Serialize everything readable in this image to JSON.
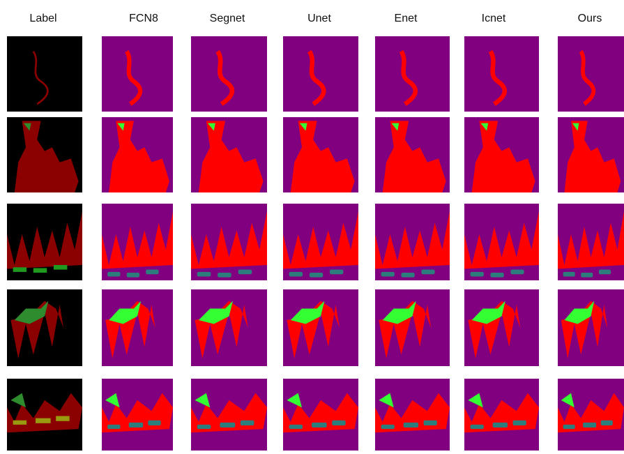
{
  "columns": [
    "Label",
    "FCN8",
    "Segnet",
    "Unet",
    "Enet",
    "Icnet",
    "Ours"
  ]
}
